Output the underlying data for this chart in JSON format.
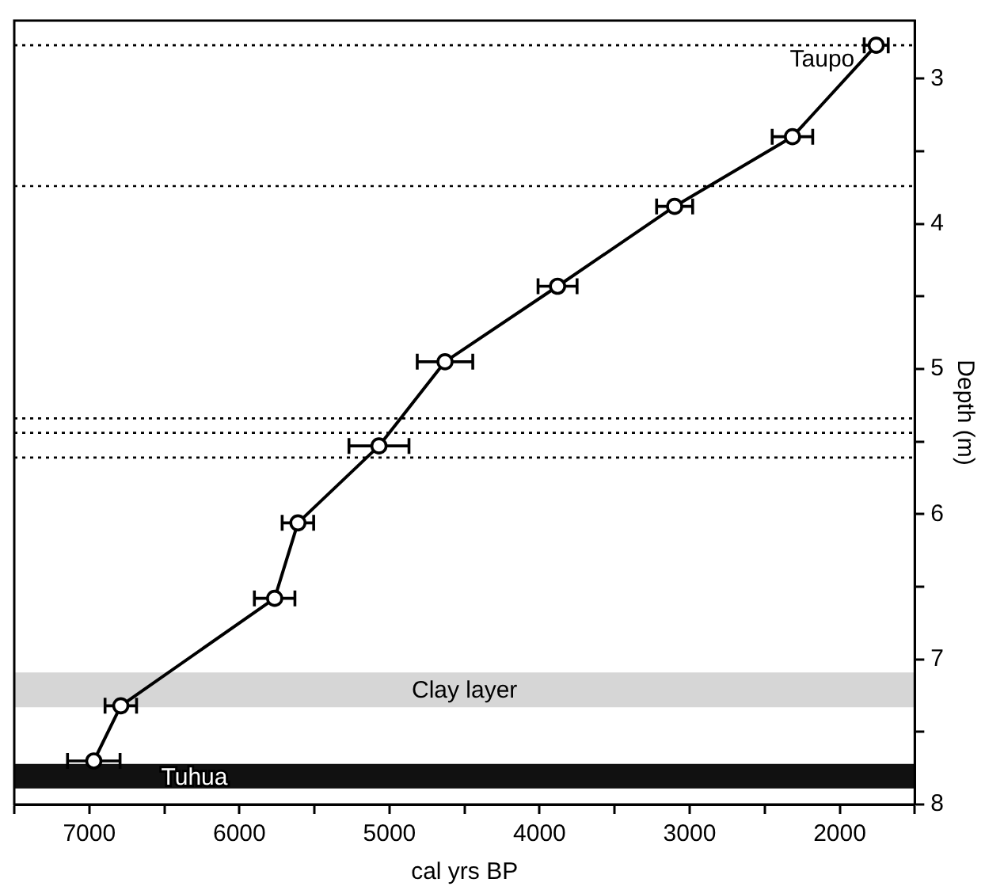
{
  "chart_data": {
    "type": "line",
    "xlabel": "cal yrs BP",
    "ylabel": "Depth (m)",
    "x": [
      1757,
      2315,
      3100,
      3880,
      4630,
      5070,
      5610,
      5765,
      6790,
      6970
    ],
    "series": [
      {
        "color": "#000000",
        "values": [
          2.77,
          3.4,
          3.88,
          4.43,
          4.95,
          5.53,
          6.06,
          6.58,
          7.32,
          7.7
        ],
        "xerrors": [
          80,
          135,
          120,
          130,
          185,
          200,
          105,
          135,
          105,
          175
        ]
      }
    ],
    "xlim": [
      7500,
      1500
    ],
    "xticks": [
      {
        "value": 7500,
        "label": null
      },
      7000,
      {
        "value": 6500,
        "label": null
      },
      6000,
      {
        "value": 5500,
        "label": null
      },
      5000,
      {
        "value": 4500,
        "label": null
      },
      4000,
      {
        "value": 3500,
        "label": null
      },
      3000,
      {
        "value": 2500,
        "label": null
      },
      2000,
      {
        "value": 1500,
        "label": null
      }
    ],
    "ylim": [
      8,
      2.6
    ],
    "yticks": [
      3,
      {
        "value": 3.5,
        "label": null
      },
      4,
      {
        "value": 4.5,
        "label": null
      },
      5,
      {
        "value": 5.5,
        "label": null
      },
      6,
      {
        "value": 6.5,
        "label": null
      },
      7,
      {
        "value": 7.5,
        "label": null
      },
      8
    ],
    "ref_lines": [
      {
        "axis": "y",
        "value": 2.77,
        "label": "Taupo",
        "color": "#000000",
        "line_style": "dotted"
      },
      {
        "axis": "y",
        "value": 3.74,
        "color": "#000000",
        "line_style": "dotted"
      },
      {
        "axis": "y",
        "value": 5.34,
        "color": "#000000",
        "line_style": "dotted"
      },
      {
        "axis": "y",
        "value": 5.44,
        "color": "#000000",
        "line_style": "dotted"
      },
      {
        "axis": "y",
        "value": 5.61,
        "color": "#000000",
        "line_style": "dotted"
      }
    ],
    "bands": [
      {
        "axis": "y",
        "from": 7.09,
        "to": 7.33,
        "label": "Clay layer",
        "color": "#d6d6d6"
      },
      {
        "axis": "y",
        "from": 7.72,
        "to": 7.89,
        "label": "Tuhua",
        "color": "#111111"
      }
    ],
    "grid": false,
    "legend": false,
    "marker": "circle",
    "line_style": "solid"
  }
}
